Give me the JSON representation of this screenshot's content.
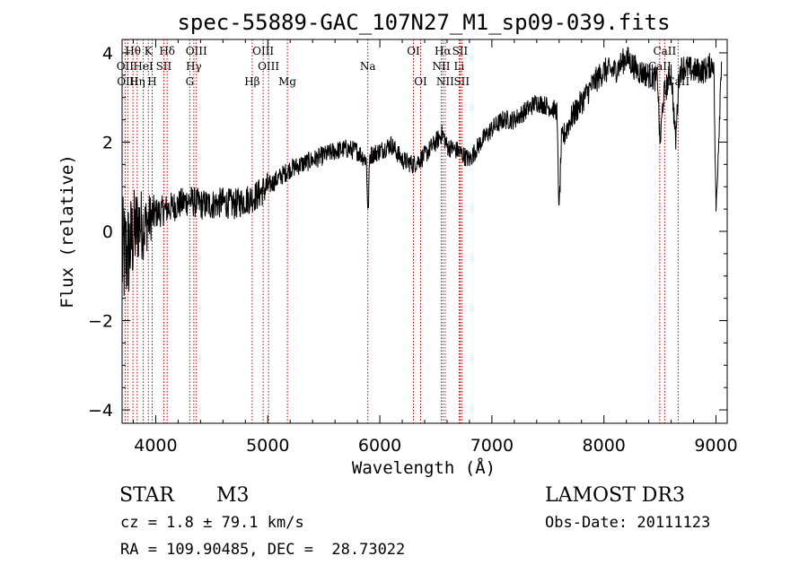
{
  "chart_data": {
    "type": "line",
    "title": "spec-55889-GAC_107N27_M1_sp09-039.fits",
    "xlabel": "Wavelength (Å)",
    "ylabel": "Flux (relative)",
    "xlim": [
      3700,
      9100
    ],
    "ylim": [
      -4.3,
      4.3
    ],
    "xticks": [
      4000,
      5000,
      6000,
      7000,
      8000,
      9000
    ],
    "yticks": [
      -4,
      -2,
      0,
      2,
      4
    ],
    "series": [
      {
        "name": "flux",
        "x": [
          3700,
          3750,
          3800,
          3850,
          3900,
          3950,
          4000,
          4100,
          4200,
          4300,
          4400,
          4500,
          4600,
          4700,
          4800,
          4900,
          5000,
          5100,
          5200,
          5300,
          5400,
          5500,
          5600,
          5700,
          5800,
          5880,
          5895,
          5910,
          6000,
          6100,
          6200,
          6300,
          6400,
          6500,
          6560,
          6600,
          6700,
          6800,
          6900,
          7000,
          7100,
          7200,
          7300,
          7400,
          7500,
          7580,
          7600,
          7620,
          7700,
          7800,
          7900,
          8000,
          8100,
          8200,
          8300,
          8400,
          8480,
          8500,
          8530,
          8600,
          8640,
          8670,
          8700,
          8800,
          8900,
          8980,
          9000,
          9030,
          9050
        ],
        "y": [
          -0.6,
          -0.5,
          -0.1,
          0.2,
          0.1,
          0.3,
          0.4,
          0.5,
          0.6,
          0.7,
          0.6,
          0.6,
          0.65,
          0.6,
          0.7,
          0.8,
          1.0,
          1.2,
          1.4,
          1.5,
          1.6,
          1.7,
          1.8,
          1.85,
          1.8,
          1.6,
          0.3,
          1.7,
          1.8,
          1.95,
          1.6,
          1.5,
          1.7,
          2.0,
          2.2,
          1.9,
          1.8,
          1.6,
          2.0,
          2.3,
          2.5,
          2.5,
          2.7,
          2.9,
          2.8,
          2.7,
          0.4,
          2.0,
          2.5,
          2.9,
          3.3,
          3.6,
          3.6,
          3.9,
          3.6,
          3.5,
          3.4,
          1.9,
          3.0,
          3.6,
          2.0,
          3.5,
          3.7,
          3.6,
          3.6,
          3.8,
          0.4,
          2.5,
          4.0
        ]
      }
    ],
    "lines": [
      {
        "label": "Hθ",
        "wave": 3797,
        "row": 1
      },
      {
        "label": "K",
        "wave": 3934,
        "row": 1
      },
      {
        "label": "Hδ",
        "wave": 4102,
        "row": 1
      },
      {
        "label": "OIII",
        "wave": 4363,
        "row": 1
      },
      {
        "label": "OIII",
        "wave": 4959,
        "row": 1
      },
      {
        "label": "OI",
        "wave": 6300,
        "row": 1
      },
      {
        "label": "Hα",
        "wave": 6563,
        "row": 1
      },
      {
        "label": "SII",
        "wave": 6716,
        "row": 1
      },
      {
        "label": "CaII",
        "wave": 8542,
        "row": 1
      },
      {
        "label": "OII",
        "wave": 3727,
        "row": 2
      },
      {
        "label": "HeI",
        "wave": 3889,
        "row": 2
      },
      {
        "label": "SII",
        "wave": 4072,
        "row": 2
      },
      {
        "label": "Hγ",
        "wave": 4340,
        "row": 2
      },
      {
        "label": "OIII",
        "wave": 5007,
        "row": 2
      },
      {
        "label": "Na",
        "wave": 5893,
        "row": 2
      },
      {
        "label": "NII",
        "wave": 6548,
        "row": 2
      },
      {
        "label": "Li",
        "wave": 6708,
        "row": 2
      },
      {
        "label": "CaII",
        "wave": 8498,
        "row": 2
      },
      {
        "label": "OIII",
        "wave": 3750,
        "row": 3
      },
      {
        "label": "Hη",
        "wave": 3835,
        "row": 3
      },
      {
        "label": "H",
        "wave": 3968,
        "row": 3
      },
      {
        "label": "G",
        "wave": 4304,
        "row": 3
      },
      {
        "label": "Hβ",
        "wave": 4861,
        "row": 3
      },
      {
        "label": "Mg",
        "wave": 5175,
        "row": 3
      },
      {
        "label": "OI",
        "wave": 6364,
        "row": 3
      },
      {
        "label": "NII",
        "wave": 6583,
        "row": 3
      },
      {
        "label": "SII",
        "wave": 6731,
        "row": 3
      },
      {
        "label": "CaII",
        "wave": 8662,
        "row": 3
      }
    ]
  },
  "info": {
    "class": "STAR",
    "subclass": "M3",
    "survey": "LAMOST DR3",
    "cz": "cz = 1.8 ± 79.1 km/s",
    "obs_date": "Obs-Date: 20111123",
    "coords": "RA = 109.90485, DEC =  28.73022"
  },
  "colors": {
    "spectrum": "#000000",
    "line_markers": "#c00000"
  }
}
